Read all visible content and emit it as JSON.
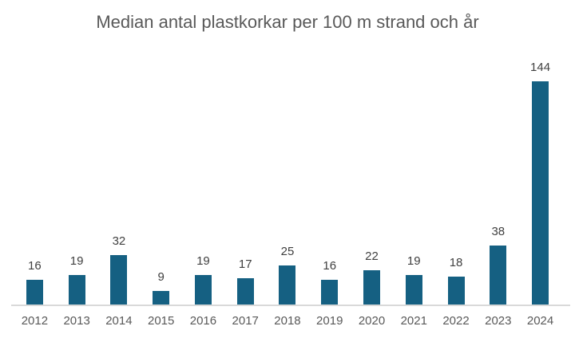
{
  "chart_data": {
    "type": "bar",
    "title": "Median antal plastkorkar per 100 m strand och år",
    "categories": [
      "2012",
      "2013",
      "2014",
      "2015",
      "2016",
      "2017",
      "2018",
      "2019",
      "2020",
      "2021",
      "2022",
      "2023",
      "2024"
    ],
    "values": [
      16,
      19,
      32,
      9,
      19,
      17,
      25,
      16,
      22,
      19,
      18,
      38,
      144
    ],
    "xlabel": "",
    "ylabel": "",
    "ylim": [
      0,
      144
    ],
    "grid": false,
    "legend": false,
    "data_labels_shown": true
  },
  "colors": {
    "bar": "#156082",
    "title": "#595959",
    "data_label": "#404040",
    "tick_label": "#595959",
    "axis_line": "#d9d9d9",
    "background": "#ffffff"
  }
}
